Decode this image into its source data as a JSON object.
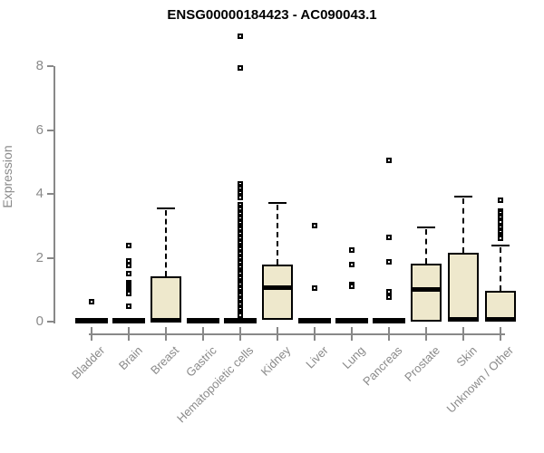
{
  "chart_data": {
    "type": "boxplot",
    "title": "ENSG00000184423 - AC090043.1",
    "ylabel": "Expression",
    "xlabel": "",
    "ylim": [
      0,
      8
    ],
    "yticks": [
      0,
      2,
      4,
      6,
      8
    ],
    "grid": false,
    "legend": "none",
    "box_fill_color": "#EEE8CC",
    "box_line_color": "#000000",
    "axis_color": "#888888",
    "label_color": "#8a8a8a",
    "categories": [
      "Bladder",
      "Brain",
      "Breast",
      "Gastric",
      "Hematopoietic cells",
      "Kidney",
      "Liver",
      "Lung",
      "Pancreas",
      "Prostate",
      "Skin",
      "Unknown / Other"
    ],
    "boxes": [
      {
        "category": "Bladder",
        "q1": 0,
        "median": 0.02,
        "q3": 0.05,
        "whisker_low": 0,
        "whisker_high": 0.05,
        "outliers": [
          0.63
        ]
      },
      {
        "category": "Brain",
        "q1": 0,
        "median": 0.02,
        "q3": 0.05,
        "whisker_low": 0,
        "whisker_high": 0.05,
        "outliers": [
          2.38,
          1.9,
          1.76,
          1.5,
          1.23,
          1.17,
          1.11,
          1.05,
          0.99,
          0.93,
          0.87,
          0.47
        ]
      },
      {
        "category": "Breast",
        "q1": 0,
        "median": 0.04,
        "q3": 1.43,
        "whisker_low": 0,
        "whisker_high": 3.55,
        "outliers": []
      },
      {
        "category": "Gastric",
        "q1": 0,
        "median": 0.02,
        "q3": 0.05,
        "whisker_low": 0,
        "whisker_high": 0.05,
        "outliers": []
      },
      {
        "category": "Hematopoietic cells",
        "q1": 0,
        "median": 0.02,
        "q3": 0.06,
        "whisker_low": 0,
        "whisker_high": 0.06,
        "outliers": [
          8.93,
          7.95,
          4.3,
          4.23,
          4.16,
          4.09,
          4.02,
          3.95,
          3.88,
          3.65,
          3.58,
          3.51,
          3.44,
          3.37,
          3.3,
          3.23,
          3.16,
          3.09,
          3.02,
          2.95,
          2.88,
          2.81,
          2.74,
          2.67,
          2.6,
          2.53,
          2.46,
          2.39,
          2.33,
          2.26,
          2.19,
          2.12,
          2.05,
          1.98,
          1.91,
          1.84,
          1.77,
          1.7,
          1.63,
          1.57,
          1.5,
          1.43,
          1.36,
          1.29,
          1.22,
          1.15,
          1.08,
          1.01,
          0.94,
          0.88,
          0.81,
          0.74,
          0.67,
          0.6,
          0.53,
          0.46,
          0.39,
          0.32,
          0.26,
          0.19
        ]
      },
      {
        "category": "Kidney",
        "q1": 0.05,
        "median": 1.04,
        "q3": 1.78,
        "whisker_low": 0.05,
        "whisker_high": 3.71,
        "outliers": []
      },
      {
        "category": "Liver",
        "q1": 0,
        "median": 0.02,
        "q3": 0.05,
        "whisker_low": 0,
        "whisker_high": 0.05,
        "outliers": [
          3.0,
          1.04
        ]
      },
      {
        "category": "Lung",
        "q1": 0,
        "median": 0.02,
        "q3": 0.05,
        "whisker_low": 0,
        "whisker_high": 0.05,
        "outliers": [
          2.24,
          1.78,
          1.16,
          1.1
        ]
      },
      {
        "category": "Pancreas",
        "q1": 0,
        "median": 0.02,
        "q3": 0.05,
        "whisker_low": 0,
        "whisker_high": 0.05,
        "outliers": [
          5.05,
          2.64,
          1.87,
          0.95,
          0.76
        ]
      },
      {
        "category": "Prostate",
        "q1": 0,
        "median": 0.99,
        "q3": 1.81,
        "whisker_low": 0,
        "whisker_high": 2.94,
        "outliers": []
      },
      {
        "category": "Skin",
        "q1": 0,
        "median": 0.05,
        "q3": 2.16,
        "whisker_low": 0,
        "whisker_high": 3.91,
        "outliers": []
      },
      {
        "category": "Unknown / Other",
        "q1": 0,
        "median": 0.05,
        "q3": 0.97,
        "whisker_low": 0,
        "whisker_high": 2.37,
        "outliers": [
          3.79,
          3.47,
          3.4,
          3.33,
          3.26,
          3.19,
          3.13,
          2.94,
          2.87,
          2.8,
          2.73,
          2.66,
          2.6
        ]
      }
    ]
  }
}
